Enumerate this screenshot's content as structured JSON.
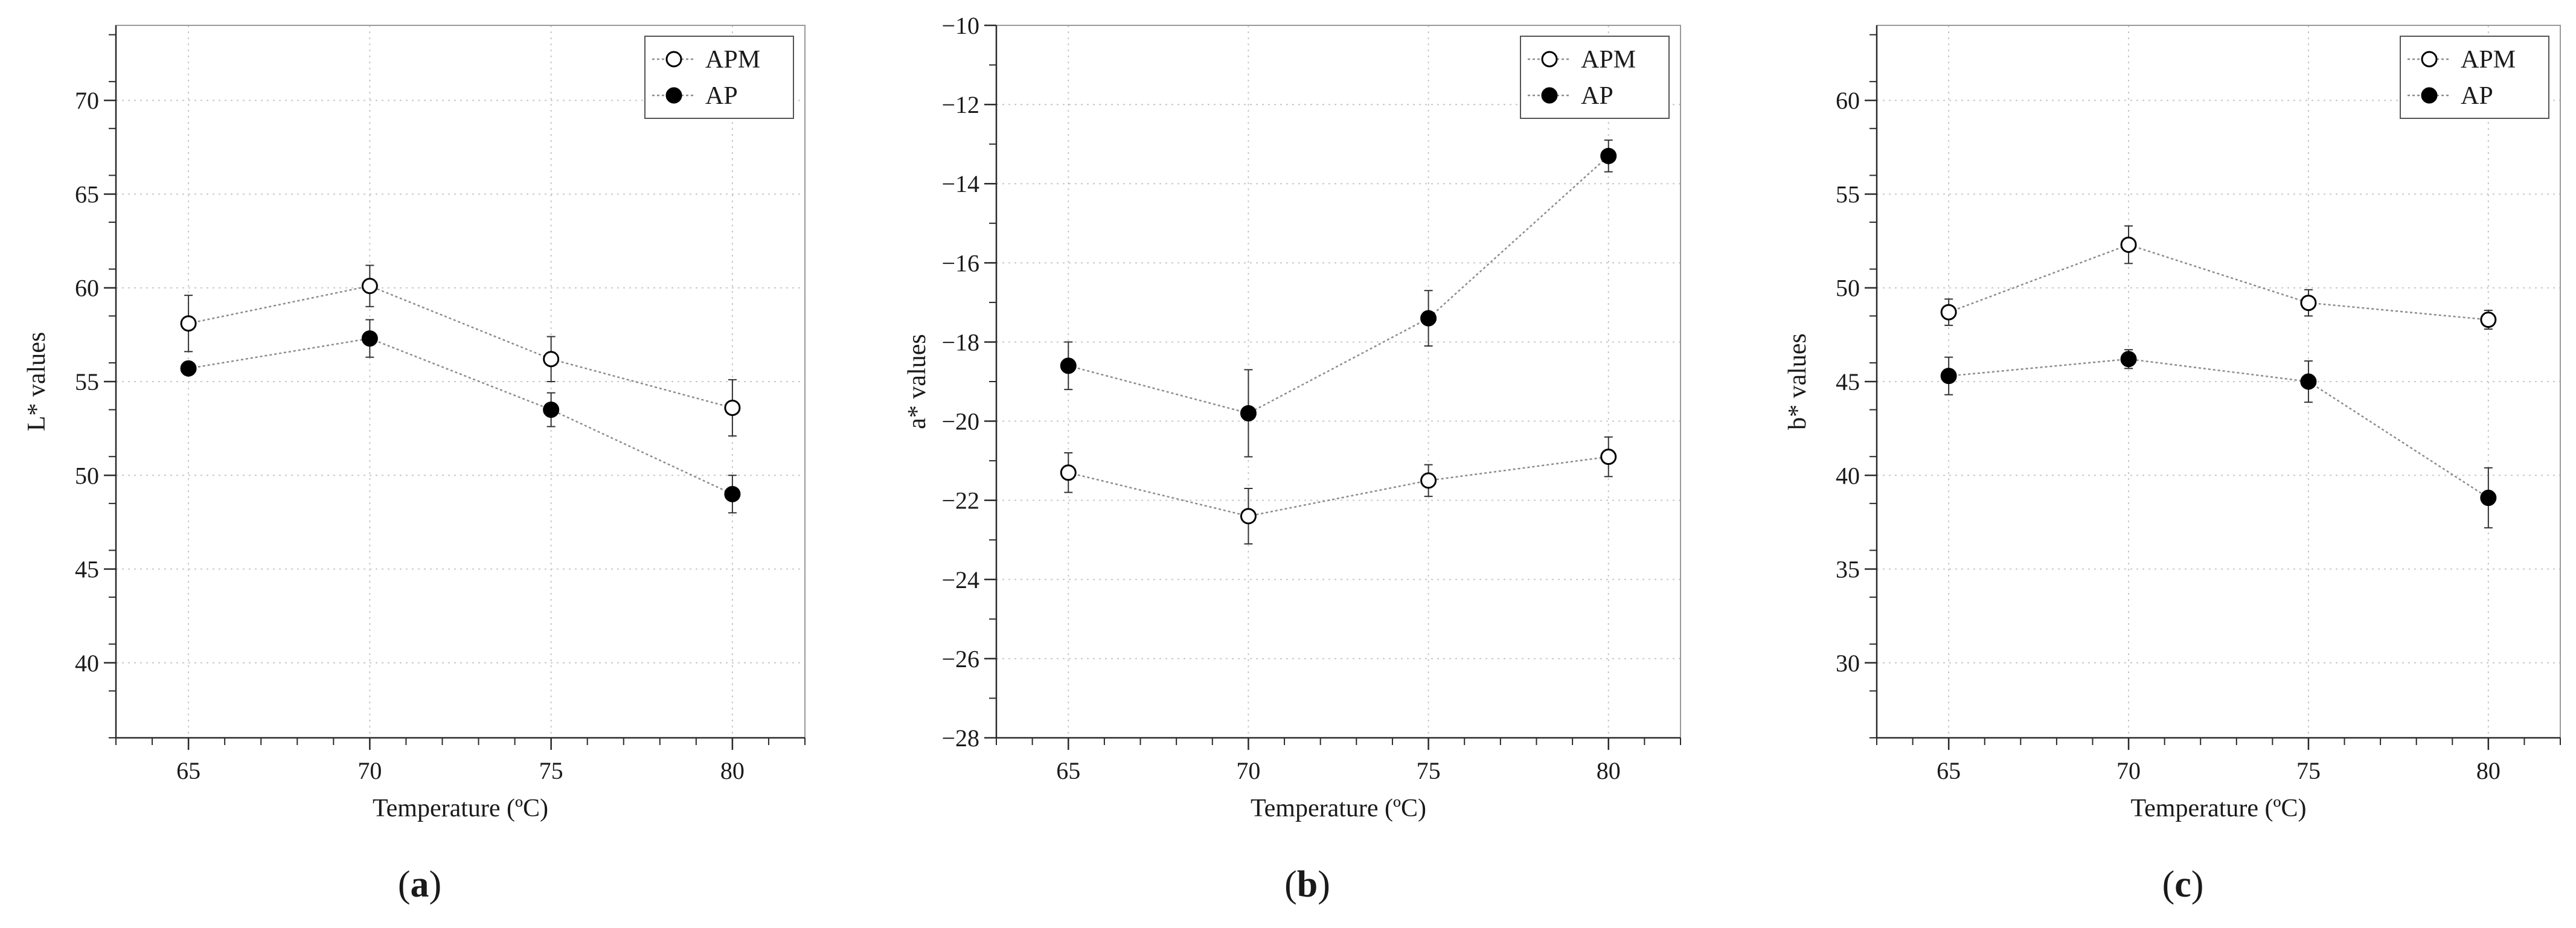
{
  "colors": {
    "line": "#8c8c8c",
    "grid": "#c8c8c8",
    "axis": "#2a2a2a",
    "marker": "#000000",
    "open_fill": "#ffffff"
  },
  "chart_data": [
    {
      "type": "line",
      "panel_label": "a",
      "xlabel": "Temperature (ºC)",
      "ylabel": "L* values",
      "x": [
        65,
        70,
        75,
        80
      ],
      "x_ticks": [
        "65",
        "70",
        "75",
        "80"
      ],
      "xlim": [
        63,
        82
      ],
      "ylim": [
        36,
        74
      ],
      "y_ticks": [
        40,
        45,
        50,
        55,
        60,
        65,
        70
      ],
      "y_tick_labels": [
        "40",
        "45",
        "50",
        "55",
        "60",
        "65",
        "70"
      ],
      "legend_position": "top-right",
      "series": [
        {
          "name": "APM",
          "marker": "open-circle",
          "values": [
            58.1,
            60.1,
            56.2,
            53.6
          ],
          "errors": [
            1.5,
            1.1,
            1.2,
            1.5
          ]
        },
        {
          "name": "AP",
          "marker": "filled-circle",
          "values": [
            55.7,
            57.3,
            53.5,
            49.0
          ],
          "errors": [
            0.2,
            1.0,
            0.9,
            1.0
          ]
        }
      ]
    },
    {
      "type": "line",
      "panel_label": "b",
      "xlabel": "Temperature (ºC)",
      "ylabel": "a* values",
      "x": [
        65,
        70,
        75,
        80
      ],
      "x_ticks": [
        "65",
        "70",
        "75",
        "80"
      ],
      "xlim": [
        63,
        82
      ],
      "ylim": [
        -28,
        -10
      ],
      "y_ticks": [
        -28,
        -26,
        -24,
        -22,
        -20,
        -18,
        -16,
        -14,
        -12,
        -10
      ],
      "y_tick_labels": [
        "−28",
        "−26",
        "−24",
        "−22",
        "−20",
        "−18",
        "−16",
        "−14",
        "−12",
        "−10"
      ],
      "legend_position": "top-right",
      "series": [
        {
          "name": "APM",
          "marker": "open-circle",
          "values": [
            -21.3,
            -22.4,
            -21.5,
            -20.9
          ],
          "errors": [
            0.5,
            0.7,
            0.4,
            0.5
          ]
        },
        {
          "name": "AP",
          "marker": "filled-circle",
          "values": [
            -18.6,
            -19.8,
            -17.4,
            -13.3
          ],
          "errors": [
            0.6,
            1.1,
            0.7,
            0.4
          ]
        }
      ]
    },
    {
      "type": "line",
      "panel_label": "c",
      "xlabel": "Temperature (ºC)",
      "ylabel": "b* values",
      "x": [
        65,
        70,
        75,
        80
      ],
      "x_ticks": [
        "65",
        "70",
        "75",
        "80"
      ],
      "xlim": [
        63,
        82
      ],
      "ylim": [
        26,
        64
      ],
      "y_ticks": [
        30,
        35,
        40,
        45,
        50,
        55,
        60
      ],
      "y_tick_labels": [
        "30",
        "35",
        "40",
        "45",
        "50",
        "55",
        "60"
      ],
      "legend_position": "top-right",
      "series": [
        {
          "name": "APM",
          "marker": "open-circle",
          "values": [
            48.7,
            52.3,
            49.2,
            48.3
          ],
          "errors": [
            0.7,
            1.0,
            0.7,
            0.5
          ]
        },
        {
          "name": "AP",
          "marker": "filled-circle",
          "values": [
            45.3,
            46.2,
            45.0,
            38.8
          ],
          "errors": [
            1.0,
            0.5,
            1.1,
            1.6
          ]
        }
      ]
    }
  ]
}
